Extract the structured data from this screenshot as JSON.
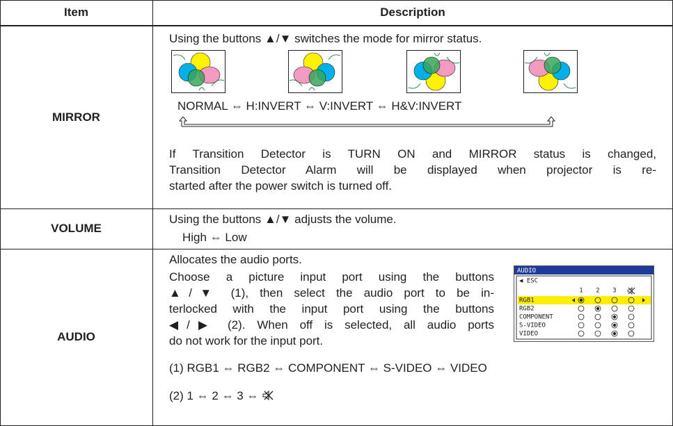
{
  "table": {
    "headers": [
      "Item",
      "Description"
    ],
    "rows": [
      {
        "item": "MIRROR",
        "description": [
          "Using the buttons ▲/▼ switches the mode for mirror status."
        ],
        "sequence": "NORMAL ⇔ H:INVERT ⇔ V:INVERT ⇔ H&V:INVERT",
        "note": [
          "If Transition Detector is TURN ON and MIRROR status is changed,",
          "Transition Detector Alarm will be displayed when projector is re-",
          "started after the power switch is turned off."
        ]
      },
      {
        "item": "VOLUME",
        "description": [
          "Using the buttons ▲/▼ adjusts the volume.",
          "High ⇔ Low"
        ]
      },
      {
        "item": "AUDIO",
        "description": [
          "Allocates the audio ports.",
          "Choose a picture input port using the buttons",
          "▲/▼ (1), then select the audio port to be in-",
          "terlocked with the input port using the buttons",
          "◀/▶ (2). When off is selected, all audio ports",
          "do not work for the input port."
        ],
        "options": [
          "(1) RGB1 ⇔ RGB2 ⇔ COMPONENT ⇔ S-VIDEO ⇔ VIDEO",
          "(2) 1 ⇔ 2 ⇔ 3 ⇔"
        ],
        "menu": {
          "title": "AUDIO",
          "back": "◀ ESC",
          "columns": [
            "1",
            "2",
            "3"
          ],
          "inputs": [
            "RGB1",
            "RGB2",
            "COMPONENT",
            "S-VIDEO",
            "VIDEO"
          ]
        }
      }
    ]
  }
}
